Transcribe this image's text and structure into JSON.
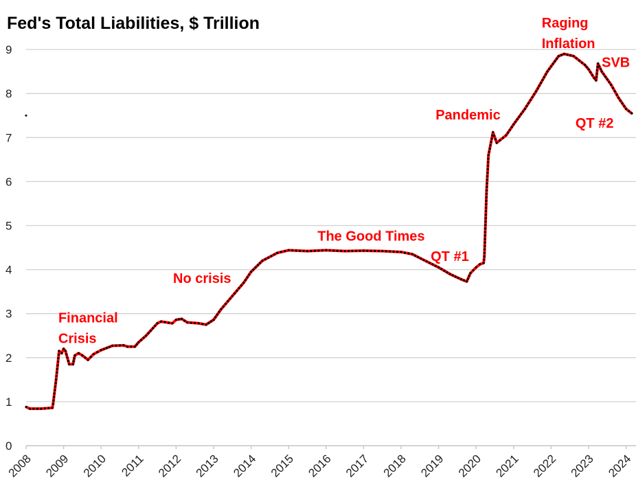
{
  "chart_data": {
    "type": "line",
    "title": "Fed's Total Liabilities, $ Trillion",
    "xlabel": "",
    "ylabel": "",
    "xlim": [
      2008,
      2024.2
    ],
    "ylim": [
      0,
      9
    ],
    "grid": true,
    "x_ticks": [
      "2008",
      "2009",
      "2010",
      "2011",
      "2012",
      "2013",
      "2014",
      "2015",
      "2016",
      "2017",
      "2018",
      "2019",
      "2020",
      "2021",
      "2022",
      "2023",
      "2024"
    ],
    "y_ticks": [
      "0",
      "1",
      "2",
      "3",
      "4",
      "5",
      "6",
      "7",
      "8",
      "9"
    ],
    "colors": {
      "line": "#ff0000",
      "markers": "#000000",
      "annotations": "#ff0000"
    },
    "series": [
      {
        "x": [
          2008.0,
          2008.1,
          2008.4,
          2008.7,
          2008.72,
          2008.8,
          2008.88,
          2008.95,
          2009.0,
          2009.05,
          2009.15,
          2009.25,
          2009.3,
          2009.4,
          2009.5,
          2009.65,
          2009.8,
          2010.0,
          2010.3,
          2010.6,
          2010.7,
          2010.9,
          2011.0,
          2011.2,
          2011.5,
          2011.6,
          2011.9,
          2012.0,
          2012.15,
          2012.3,
          2012.6,
          2012.8,
          2013.0,
          2013.2,
          2013.5,
          2013.8,
          2014.0,
          2014.3,
          2014.7,
          2015.0,
          2015.5,
          2016.0,
          2016.5,
          2017.0,
          2017.5,
          2018.0,
          2018.3,
          2018.6,
          2019.0,
          2019.3,
          2019.6,
          2019.75,
          2019.85,
          2020.0,
          2020.1,
          2020.2,
          2020.22,
          2020.28,
          2020.33,
          2020.4,
          2020.45,
          2020.55,
          2020.8,
          2021.0,
          2021.3,
          2021.6,
          2021.9,
          2022.2,
          2022.35,
          2022.6,
          2022.9,
          2023.0,
          2023.15,
          2023.2,
          2023.25,
          2023.35,
          2023.6,
          2023.8,
          2024.0,
          2024.15
        ],
        "values": [
          0.88,
          0.84,
          0.84,
          0.86,
          0.95,
          1.5,
          2.15,
          2.1,
          2.2,
          2.15,
          1.85,
          1.85,
          2.05,
          2.1,
          2.05,
          1.95,
          2.08,
          2.17,
          2.27,
          2.28,
          2.25,
          2.25,
          2.35,
          2.5,
          2.78,
          2.82,
          2.78,
          2.86,
          2.88,
          2.8,
          2.78,
          2.75,
          2.86,
          3.1,
          3.4,
          3.7,
          3.95,
          4.2,
          4.38,
          4.44,
          4.42,
          4.44,
          4.42,
          4.43,
          4.42,
          4.4,
          4.35,
          4.22,
          4.05,
          3.9,
          3.78,
          3.73,
          3.92,
          4.05,
          4.12,
          4.15,
          4.3,
          5.8,
          6.6,
          6.9,
          7.12,
          6.88,
          7.05,
          7.3,
          7.65,
          8.05,
          8.5,
          8.85,
          8.9,
          8.85,
          8.65,
          8.55,
          8.35,
          8.3,
          8.68,
          8.5,
          8.2,
          7.9,
          7.65,
          7.55
        ]
      }
    ],
    "isolated_points": [
      {
        "x": 2008.0,
        "y": 7.5
      }
    ],
    "annotations": [
      {
        "lines": [
          "Financial",
          "Crisis"
        ],
        "x": 2008.86,
        "y": 2.8
      },
      {
        "lines": [
          "No crisis"
        ],
        "x": 2011.92,
        "y": 3.7
      },
      {
        "lines": [
          "The Good Times"
        ],
        "x": 2015.77,
        "y": 4.66
      },
      {
        "lines": [
          "QT #1"
        ],
        "x": 2018.79,
        "y": 4.2
      },
      {
        "lines": [
          "Pandemic"
        ],
        "x": 2018.92,
        "y": 7.41
      },
      {
        "lines": [
          "Raging",
          "Inflation"
        ],
        "x": 2021.75,
        "y": 9.5
      },
      {
        "lines": [
          "SVB"
        ],
        "x": 2023.35,
        "y": 8.6
      },
      {
        "lines": [
          "QT #2"
        ],
        "x": 2022.65,
        "y": 7.22
      }
    ]
  }
}
